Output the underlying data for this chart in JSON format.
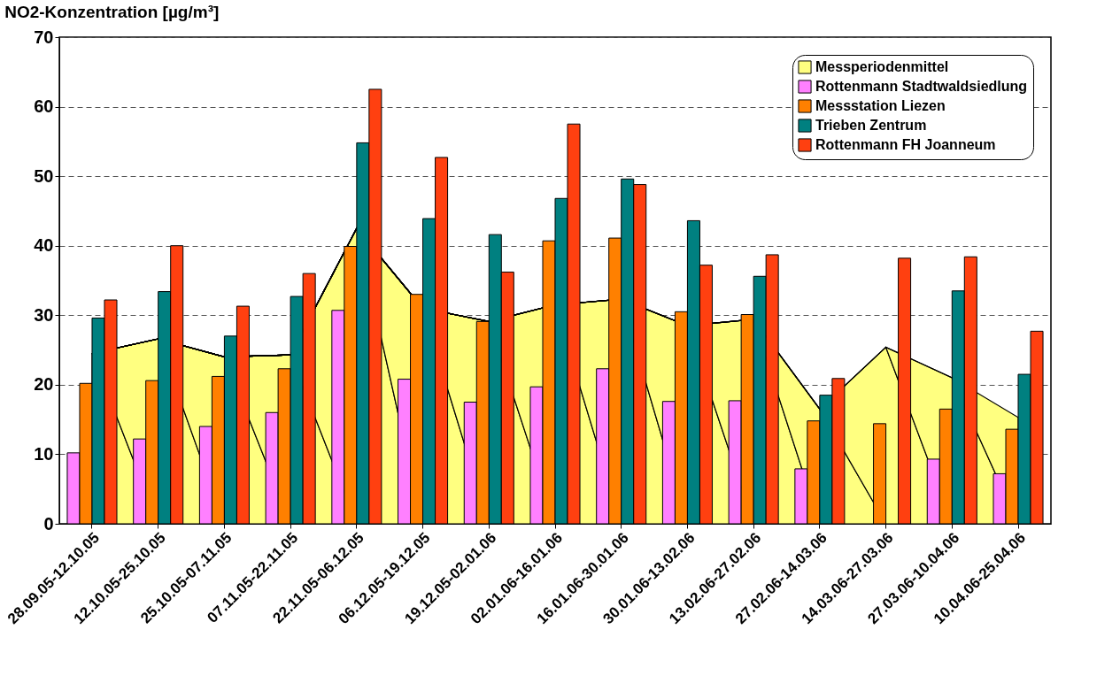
{
  "chart_data": {
    "type": "bar",
    "title": "NO2-Konzentration [µg/m³]",
    "categories": [
      "28.09.05-12.10.05",
      "12.10.05-25.10.05",
      "25.10.05-07.11.05",
      "07.11.05-22.11.05",
      "22.11.05-06.12.05",
      "06.12.05-19.12.05",
      "19.12.05-02.01.06",
      "02.01.06-16.01.06",
      "16.01.06-30.01.06",
      "30.01.06-13.02.06",
      "13.02.06-27.02.06",
      "27.02.06-14.03.06",
      "14.03.06-27.03.06",
      "27.03.06-10.04.06",
      "10.04.06-25.04.06"
    ],
    "series": [
      {
        "name": "Messperiodenmittel",
        "type": "area",
        "color": "#ffff80",
        "values": [
          24.5,
          26.6,
          24.0,
          24.3,
          42.5,
          31.0,
          29.1,
          31.5,
          32.3,
          28.5,
          29.4,
          16.5,
          25.4,
          21.0,
          15.3
        ]
      },
      {
        "name": "Rottenmann Stadtwaldsiedlung",
        "color": "#ff80ff",
        "values": [
          10.2,
          12.2,
          14.0,
          16.0,
          30.7,
          20.8,
          17.5,
          19.7,
          22.3,
          17.6,
          17.7,
          7.9,
          null,
          9.3,
          7.2
        ]
      },
      {
        "name": "Messstation Liezen",
        "color": "#ff8000",
        "values": [
          20.2,
          20.6,
          21.2,
          22.3,
          39.9,
          33.0,
          29.1,
          40.7,
          41.1,
          30.5,
          30.1,
          14.8,
          14.4,
          16.5,
          13.6
        ]
      },
      {
        "name": "Trieben Zentrum",
        "color": "#008080",
        "values": [
          29.6,
          33.4,
          27.0,
          32.7,
          54.8,
          43.9,
          41.6,
          46.8,
          49.6,
          43.6,
          35.6,
          18.5,
          null,
          33.5,
          21.5
        ]
      },
      {
        "name": "Rottenmann FH Joanneum",
        "color": "#ff4010",
        "values": [
          32.2,
          40.0,
          31.3,
          36.0,
          62.5,
          52.7,
          36.2,
          57.5,
          48.8,
          37.2,
          38.7,
          20.9,
          38.2,
          38.4,
          27.7
        ]
      }
    ],
    "ylim": [
      0,
      70
    ],
    "yticks": [
      0,
      10,
      20,
      30,
      40,
      50,
      60,
      70
    ],
    "grid": "y",
    "legend": "top right"
  }
}
